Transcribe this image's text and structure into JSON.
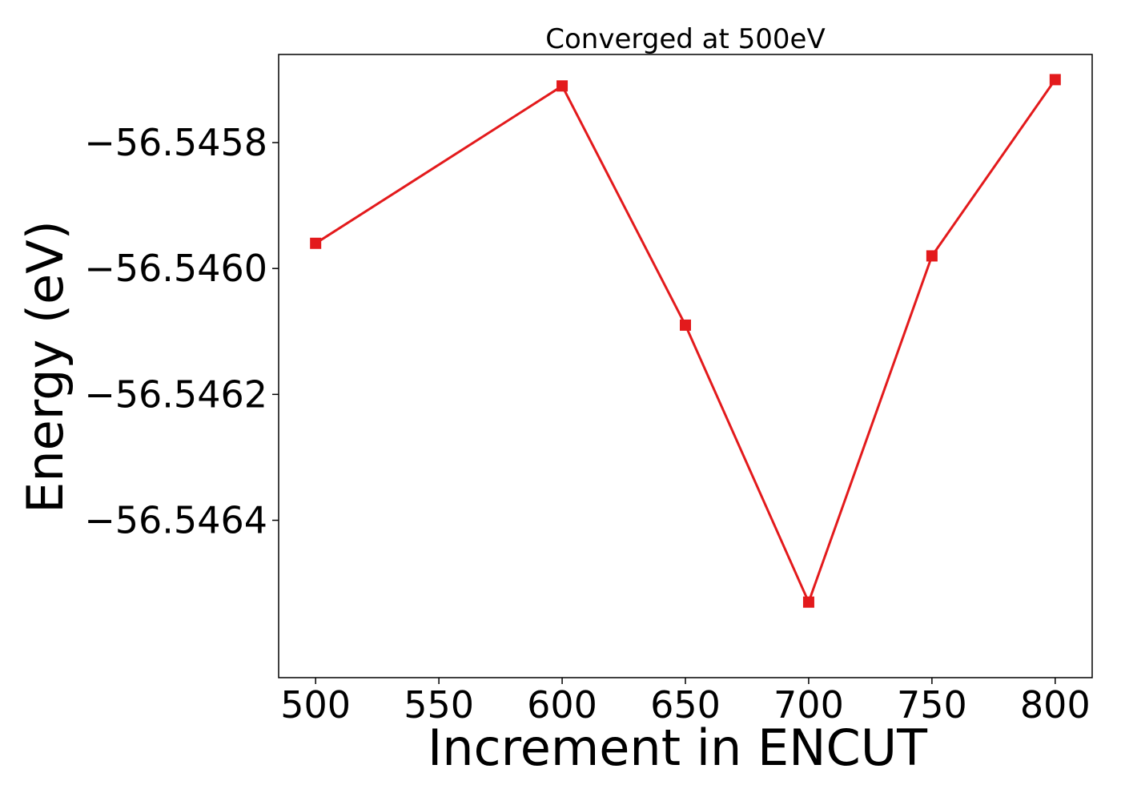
{
  "chart_data": {
    "type": "line",
    "title": "Converged at 500eV",
    "xlabel": "Increment in ENCUT",
    "ylabel": "Energy (eV)",
    "x": [
      500,
      600,
      650,
      700,
      750,
      800
    ],
    "y": [
      -56.54596,
      -56.54571,
      -56.54609,
      -56.54653,
      -56.54598,
      -56.5457
    ],
    "xlim": [
      485,
      815
    ],
    "ylim": [
      -56.54665,
      -56.54566
    ],
    "xticks": [
      500,
      550,
      600,
      650,
      700,
      750,
      800
    ],
    "xtick_labels": [
      "500",
      "550",
      "600",
      "650",
      "700",
      "750",
      "800"
    ],
    "yticks": [
      -56.5458,
      -56.546,
      -56.5462,
      -56.5464
    ],
    "ytick_labels": [
      "−56.5458",
      "−56.5460",
      "−56.5462",
      "−56.5464"
    ],
    "series_color": "#e31a1c",
    "marker": "square",
    "grid": false
  }
}
